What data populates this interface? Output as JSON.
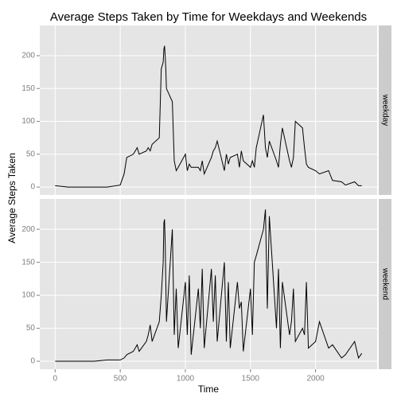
{
  "chart_data": {
    "type": "line",
    "title": "Average Steps Taken by Time for Weekdays and Weekends",
    "xlabel": "Time",
    "ylabel": "Average Steps Taken",
    "x": [
      0,
      100,
      200,
      300,
      400,
      500,
      530,
      550,
      600,
      615,
      630,
      645,
      700,
      715,
      730,
      745,
      800,
      815,
      830,
      835,
      840,
      845,
      850,
      855,
      900,
      915,
      930,
      945,
      1000,
      1015,
      1030,
      1045,
      1100,
      1115,
      1130,
      1145,
      1200,
      1215,
      1230,
      1245,
      1300,
      1315,
      1330,
      1345,
      1400,
      1415,
      1430,
      1445,
      1500,
      1515,
      1530,
      1545,
      1600,
      1615,
      1630,
      1645,
      1700,
      1715,
      1730,
      1745,
      1800,
      1815,
      1830,
      1845,
      1900,
      1915,
      1930,
      1945,
      2000,
      2030,
      2100,
      2130,
      2200,
      2230,
      2300,
      2330,
      2355
    ],
    "series": [
      {
        "name": "weekday",
        "color": "#000000",
        "values": [
          2,
          0,
          0,
          0,
          0,
          3,
          20,
          45,
          50,
          55,
          60,
          50,
          55,
          60,
          55,
          65,
          75,
          180,
          190,
          210,
          215,
          200,
          180,
          150,
          130,
          40,
          25,
          30,
          50,
          25,
          35,
          30,
          30,
          25,
          40,
          20,
          45,
          55,
          60,
          70,
          25,
          50,
          35,
          45,
          50,
          30,
          55,
          40,
          30,
          40,
          30,
          60,
          110,
          60,
          45,
          70,
          40,
          30,
          65,
          90,
          40,
          30,
          45,
          100,
          90,
          60,
          35,
          30,
          25,
          20,
          25,
          10,
          8,
          3,
          8,
          2,
          2
        ]
      },
      {
        "name": "weekend",
        "color": "#000000",
        "values": [
          0,
          0,
          0,
          0,
          2,
          2,
          5,
          10,
          15,
          20,
          25,
          15,
          30,
          40,
          55,
          30,
          60,
          100,
          150,
          210,
          215,
          180,
          120,
          60,
          200,
          40,
          110,
          20,
          120,
          40,
          130,
          10,
          110,
          50,
          140,
          20,
          140,
          60,
          130,
          30,
          150,
          30,
          120,
          20,
          120,
          80,
          90,
          15,
          110,
          40,
          150,
          160,
          200,
          230,
          80,
          220,
          50,
          140,
          20,
          120,
          40,
          60,
          110,
          30,
          50,
          40,
          120,
          20,
          30,
          60,
          20,
          25,
          5,
          10,
          30,
          5,
          12
        ]
      }
    ],
    "xlim": [
      -118,
      2473
    ],
    "xticks": [
      0,
      500,
      1000,
      1500,
      2000
    ],
    "ylim": [
      -12,
      246
    ],
    "yticks": [
      0,
      50,
      100,
      150,
      200
    ],
    "grid": true
  }
}
